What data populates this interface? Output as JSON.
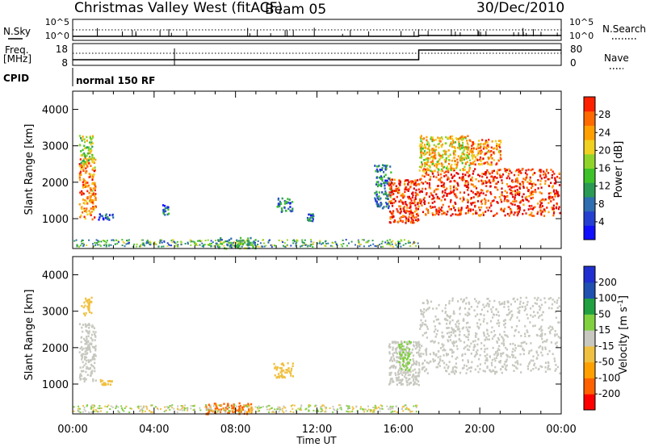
{
  "header": {
    "station": "Christmas Valley West (fitACF)",
    "beam": "Beam 05",
    "date": "30/Dec/2010"
  },
  "top_panels": {
    "nsky_label": "N.Sky",
    "nsearch_label": "N.Search",
    "freq_label_1": "Freq.",
    "freq_label_2": "[MHz]",
    "nave_label": "Nave",
    "cpid_label": "CPID",
    "cpid_value": "normal 150 RF",
    "noise_ticks_left": [
      "10^5",
      "10^0"
    ],
    "noise_ticks_right": [
      "10^5",
      "10^0"
    ],
    "freq_ticks": [
      "18",
      "8"
    ],
    "nave_ticks": [
      "80",
      "0"
    ]
  },
  "colors": {
    "power_scale": [
      "#1010ff",
      "#2540d0",
      "#2f6eb0",
      "#2a9a55",
      "#3ec22a",
      "#8fd42a",
      "#f0d020",
      "#ffa000",
      "#ff6a00",
      "#ff2000",
      "#e00000"
    ],
    "velocity_scale": [
      "#ff0000",
      "#ff6000",
      "#ffa000",
      "#f0c040",
      "#c8c8c0",
      "#80d040",
      "#20a040",
      "#2050b0",
      "#2030d0"
    ],
    "ground_scatter": "#c8c8c0"
  },
  "chart_data": [
    {
      "type": "heatmap",
      "panel": "power",
      "xlabel": "Time UT",
      "ylabel": "Slant Range [km]",
      "x_ticks": [
        "00:00",
        "04:00",
        "08:00",
        "12:00",
        "16:00",
        "20:00",
        "00:00"
      ],
      "xlim_hours": [
        0,
        24
      ],
      "y_ticks": [
        "1000",
        "2000",
        "3000",
        "4000"
      ],
      "ylim": [
        180,
        4500
      ],
      "colorbar_label": "Power [dB]",
      "colorbar_ticks": [
        "4",
        "8",
        "12",
        "16",
        "20",
        "24",
        "28"
      ],
      "colorbar_range": [
        0,
        30
      ],
      "regions": [
        {
          "t0": 0.3,
          "t1": 1.1,
          "r0": 1000,
          "r1": 2700,
          "value": 22
        },
        {
          "t0": 0.3,
          "t1": 1.0,
          "r0": 2500,
          "r1": 3300,
          "value": 14
        },
        {
          "t0": 1.2,
          "t1": 2.0,
          "r0": 980,
          "r1": 1150,
          "value": 6
        },
        {
          "t0": 4.4,
          "t1": 4.7,
          "r0": 1100,
          "r1": 1400,
          "value": 6
        },
        {
          "t0": 7.0,
          "t1": 9.0,
          "r0": 200,
          "r1": 500,
          "value": 12
        },
        {
          "t0": 10.0,
          "t1": 10.8,
          "r0": 1200,
          "r1": 1600,
          "value": 8
        },
        {
          "t0": 11.5,
          "t1": 11.8,
          "r0": 950,
          "r1": 1150,
          "value": 7
        },
        {
          "t0": 14.8,
          "t1": 15.6,
          "r0": 1300,
          "r1": 2500,
          "value": 8
        },
        {
          "t0": 15.5,
          "t1": 17.0,
          "r0": 900,
          "r1": 2100,
          "value": 26
        },
        {
          "t0": 17.0,
          "t1": 23.9,
          "r0": 1100,
          "r1": 2400,
          "value": 26
        },
        {
          "t0": 17.0,
          "t1": 19.5,
          "r0": 2300,
          "r1": 3300,
          "value": 18
        },
        {
          "t0": 19.5,
          "t1": 21.0,
          "r0": 2500,
          "r1": 3200,
          "value": 22
        }
      ]
    },
    {
      "type": "heatmap",
      "panel": "velocity",
      "xlabel": "Time UT",
      "ylabel": "Slant Range [km]",
      "x_ticks": [
        "00:00",
        "04:00",
        "08:00",
        "12:00",
        "16:00",
        "20:00",
        "00:00"
      ],
      "xlim_hours": [
        0,
        24
      ],
      "y_ticks": [
        "1000",
        "2000",
        "3000",
        "4000"
      ],
      "ylim": [
        180,
        4500
      ],
      "colorbar_label": "Velocity [m s^-1]",
      "colorbar_ticks": [
        "200",
        "100",
        "50",
        "15",
        "-15",
        "-50",
        "-100",
        "-200"
      ],
      "colorbar_range": [
        -250,
        250
      ],
      "regions": [
        {
          "t0": 0.3,
          "t1": 1.1,
          "r0": 1100,
          "r1": 2700,
          "value": 0
        },
        {
          "t0": 0.4,
          "t1": 0.9,
          "r0": 2900,
          "r1": 3400,
          "value": -60
        },
        {
          "t0": 1.3,
          "t1": 1.9,
          "r0": 1000,
          "r1": 1150,
          "value": -60
        },
        {
          "t0": 6.5,
          "t1": 8.8,
          "r0": 200,
          "r1": 500,
          "value": -150
        },
        {
          "t0": 9.8,
          "t1": 10.8,
          "r0": 1200,
          "r1": 1600,
          "value": -60
        },
        {
          "t0": 15.5,
          "t1": 17.0,
          "r0": 1000,
          "r1": 2200,
          "value": 0
        },
        {
          "t0": 16.0,
          "t1": 16.6,
          "r0": 1400,
          "r1": 2200,
          "value": 40
        },
        {
          "t0": 17.0,
          "t1": 23.9,
          "r0": 1300,
          "r1": 3400,
          "value": 0
        }
      ]
    }
  ]
}
